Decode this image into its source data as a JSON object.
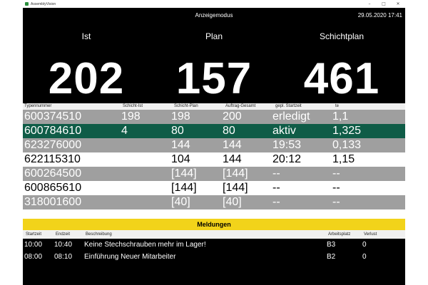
{
  "window": {
    "title": "AssemblyVision",
    "controls": {
      "minimize": "–",
      "maximize": "□",
      "close": "✕"
    }
  },
  "header": {
    "mode": "Anzeigemodus",
    "datetime": "29.05.2020 17:41"
  },
  "kpis": [
    {
      "label": "Ist",
      "value": "202"
    },
    {
      "label": "Plan",
      "value": "157"
    },
    {
      "label": "Schichtplan",
      "value": "461"
    }
  ],
  "grid": {
    "columns": [
      "Typennummer",
      "Schicht-Ist",
      "Schicht-Plan",
      "Auftrag-Gesamt",
      "gepl. Startzeit",
      "te"
    ],
    "rows": [
      [
        "600374510",
        "198",
        "198",
        "200",
        "erledigt",
        "1,1"
      ],
      [
        "600784610",
        "4",
        "80",
        "80",
        "aktiv",
        "1,325"
      ],
      [
        "623276000",
        "",
        "144",
        "144",
        "19:53",
        "0,133"
      ],
      [
        "622115310",
        "",
        "104",
        "144",
        "20:12",
        "1,15"
      ],
      [
        "600264500",
        "",
        "[144]",
        "[144]",
        "--",
        "--"
      ],
      [
        "600865610",
        "",
        "[144]",
        "[144]",
        "--",
        "--"
      ],
      [
        "318001600",
        "",
        "[40]",
        "[40]",
        "--",
        "--"
      ]
    ],
    "row_styles": [
      "grey",
      "green",
      "grey",
      "white",
      "grey",
      "white",
      "grey"
    ]
  },
  "messages": {
    "title": "Meldungen",
    "columns": [
      "Startzeit",
      "Endzeit",
      "Beschreibung",
      "Arbeitsplatz",
      "Verlust"
    ],
    "rows": [
      [
        "10:00",
        "10:40",
        "Keine Stechschrauben mehr im Lager!",
        "B3",
        "0"
      ],
      [
        "08:00",
        "08:10",
        "Einführung Neuer Mitarbeiter",
        "B2",
        "0"
      ]
    ]
  },
  "colors": {
    "accent_yellow": "#f2d31a",
    "active_green": "#0f5c47",
    "grey_row": "#9f9f9f"
  }
}
